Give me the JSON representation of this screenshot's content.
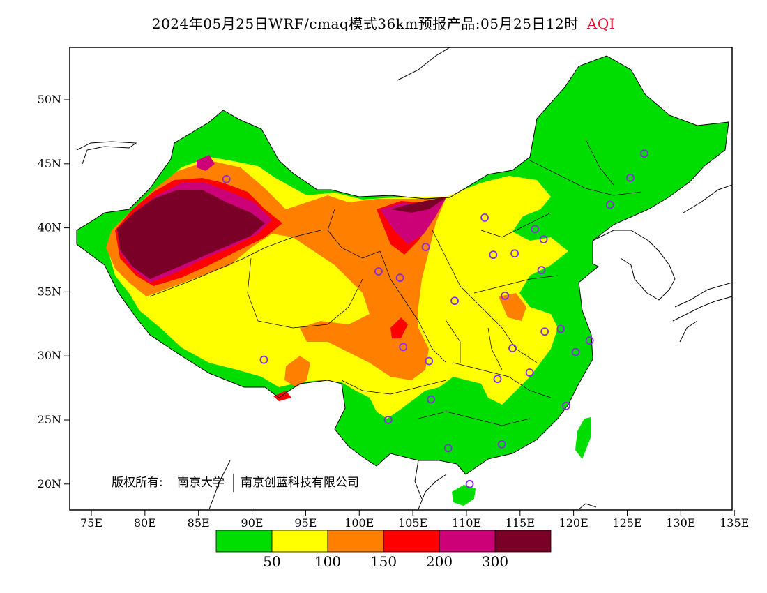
{
  "title": {
    "text": "2024年05月25日WRF/cmaq模式36km预报产品:05月25日12时",
    "variable": "AQI"
  },
  "axes": {
    "y_labels": [
      "50N",
      "45N",
      "40N",
      "35N",
      "30N",
      "25N",
      "20N"
    ],
    "x_labels": [
      "75E",
      "80E",
      "85E",
      "90E",
      "95E",
      "100E",
      "105E",
      "110E",
      "115E",
      "120E",
      "125E",
      "130E",
      "135E"
    ],
    "lon_range": [
      73,
      135
    ],
    "lat_range": [
      18,
      54
    ]
  },
  "copyright": {
    "prefix": "版权所有:",
    "org1": "南京大学",
    "org2": "南京创蓝科技有限公司"
  },
  "legend": {
    "colors": [
      "#00dd00",
      "#ffff00",
      "#ff8000",
      "#ff0000",
      "#cc0077",
      "#7a0027"
    ],
    "labels": [
      "50",
      "100",
      "150",
      "200",
      "300"
    ]
  },
  "stations": [
    {
      "lon": 126.6,
      "lat": 45.8
    },
    {
      "lon": 125.3,
      "lat": 43.9
    },
    {
      "lon": 123.4,
      "lat": 41.8
    },
    {
      "lon": 116.4,
      "lat": 39.9
    },
    {
      "lon": 117.2,
      "lat": 39.1
    },
    {
      "lon": 114.5,
      "lat": 38.0
    },
    {
      "lon": 112.5,
      "lat": 37.9
    },
    {
      "lon": 111.7,
      "lat": 40.8
    },
    {
      "lon": 117.0,
      "lat": 36.7
    },
    {
      "lon": 113.6,
      "lat": 34.7
    },
    {
      "lon": 108.9,
      "lat": 34.3
    },
    {
      "lon": 106.2,
      "lat": 38.5
    },
    {
      "lon": 103.8,
      "lat": 36.1
    },
    {
      "lon": 101.8,
      "lat": 36.6
    },
    {
      "lon": 87.6,
      "lat": 43.8
    },
    {
      "lon": 91.1,
      "lat": 29.7
    },
    {
      "lon": 104.1,
      "lat": 30.7
    },
    {
      "lon": 106.5,
      "lat": 29.6
    },
    {
      "lon": 106.7,
      "lat": 26.6
    },
    {
      "lon": 102.7,
      "lat": 25.0
    },
    {
      "lon": 108.3,
      "lat": 22.8
    },
    {
      "lon": 113.3,
      "lat": 23.1
    },
    {
      "lon": 110.3,
      "lat": 20.0
    },
    {
      "lon": 112.9,
      "lat": 28.2
    },
    {
      "lon": 114.3,
      "lat": 30.6
    },
    {
      "lon": 115.9,
      "lat": 28.7
    },
    {
      "lon": 117.3,
      "lat": 31.9
    },
    {
      "lon": 118.8,
      "lat": 32.1
    },
    {
      "lon": 120.2,
      "lat": 30.3
    },
    {
      "lon": 121.5,
      "lat": 31.2
    },
    {
      "lon": 119.3,
      "lat": 26.1
    }
  ]
}
